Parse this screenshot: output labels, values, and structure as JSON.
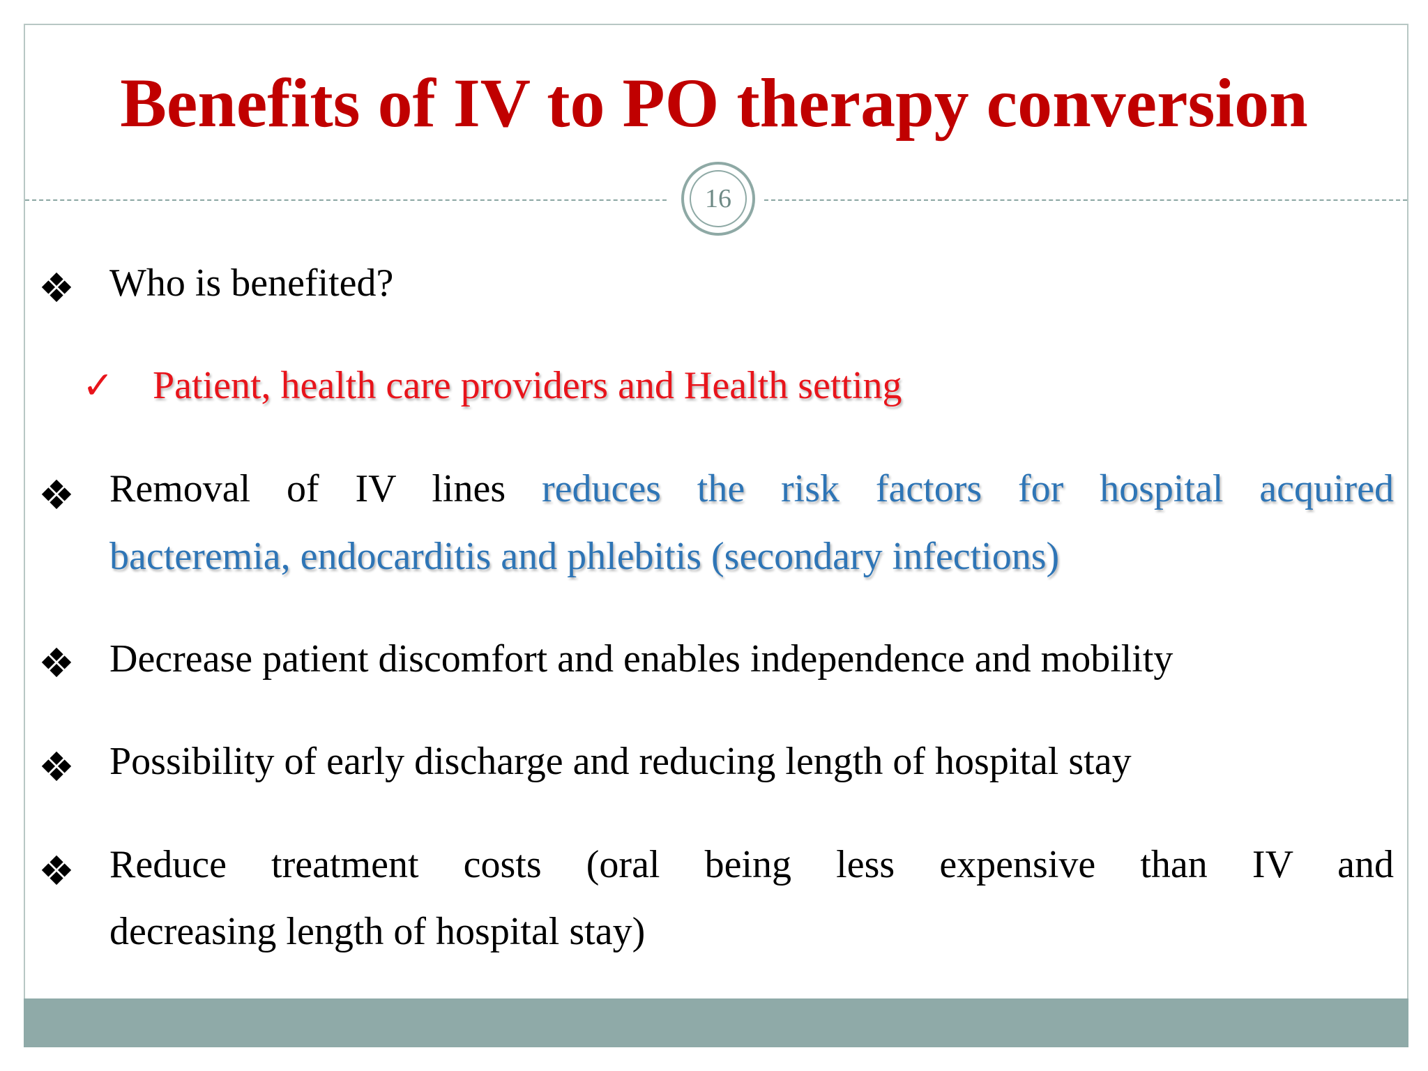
{
  "slide": {
    "title": "Benefits of IV to PO therapy conversion",
    "page_number": "16"
  },
  "bullets": {
    "who": "Who is benefited?",
    "who_answer": "Patient, health care providers and Health setting",
    "removal_plain": "Removal of IV lines",
    "removal_highlight_line1": "reduces the risk factors for hospital acquired",
    "removal_highlight_line2": "bacteremia, endocarditis and phlebitis (secondary infections)",
    "discomfort": "Decrease patient discomfort and enables independence and mobility",
    "discharge": "Possibility of early discharge and reducing length of hospital stay",
    "costs_line1": "Reduce treatment costs (oral being less expensive than IV and",
    "costs_line2": "decreasing length of hospital stay)"
  },
  "icons": {
    "bullet_marker": "❖",
    "check_marker": "✓"
  },
  "colors": {
    "title": "#c00000",
    "highlight_red": "#e8141b",
    "highlight_blue": "#2e75b6",
    "footer": "#8faaa8"
  }
}
